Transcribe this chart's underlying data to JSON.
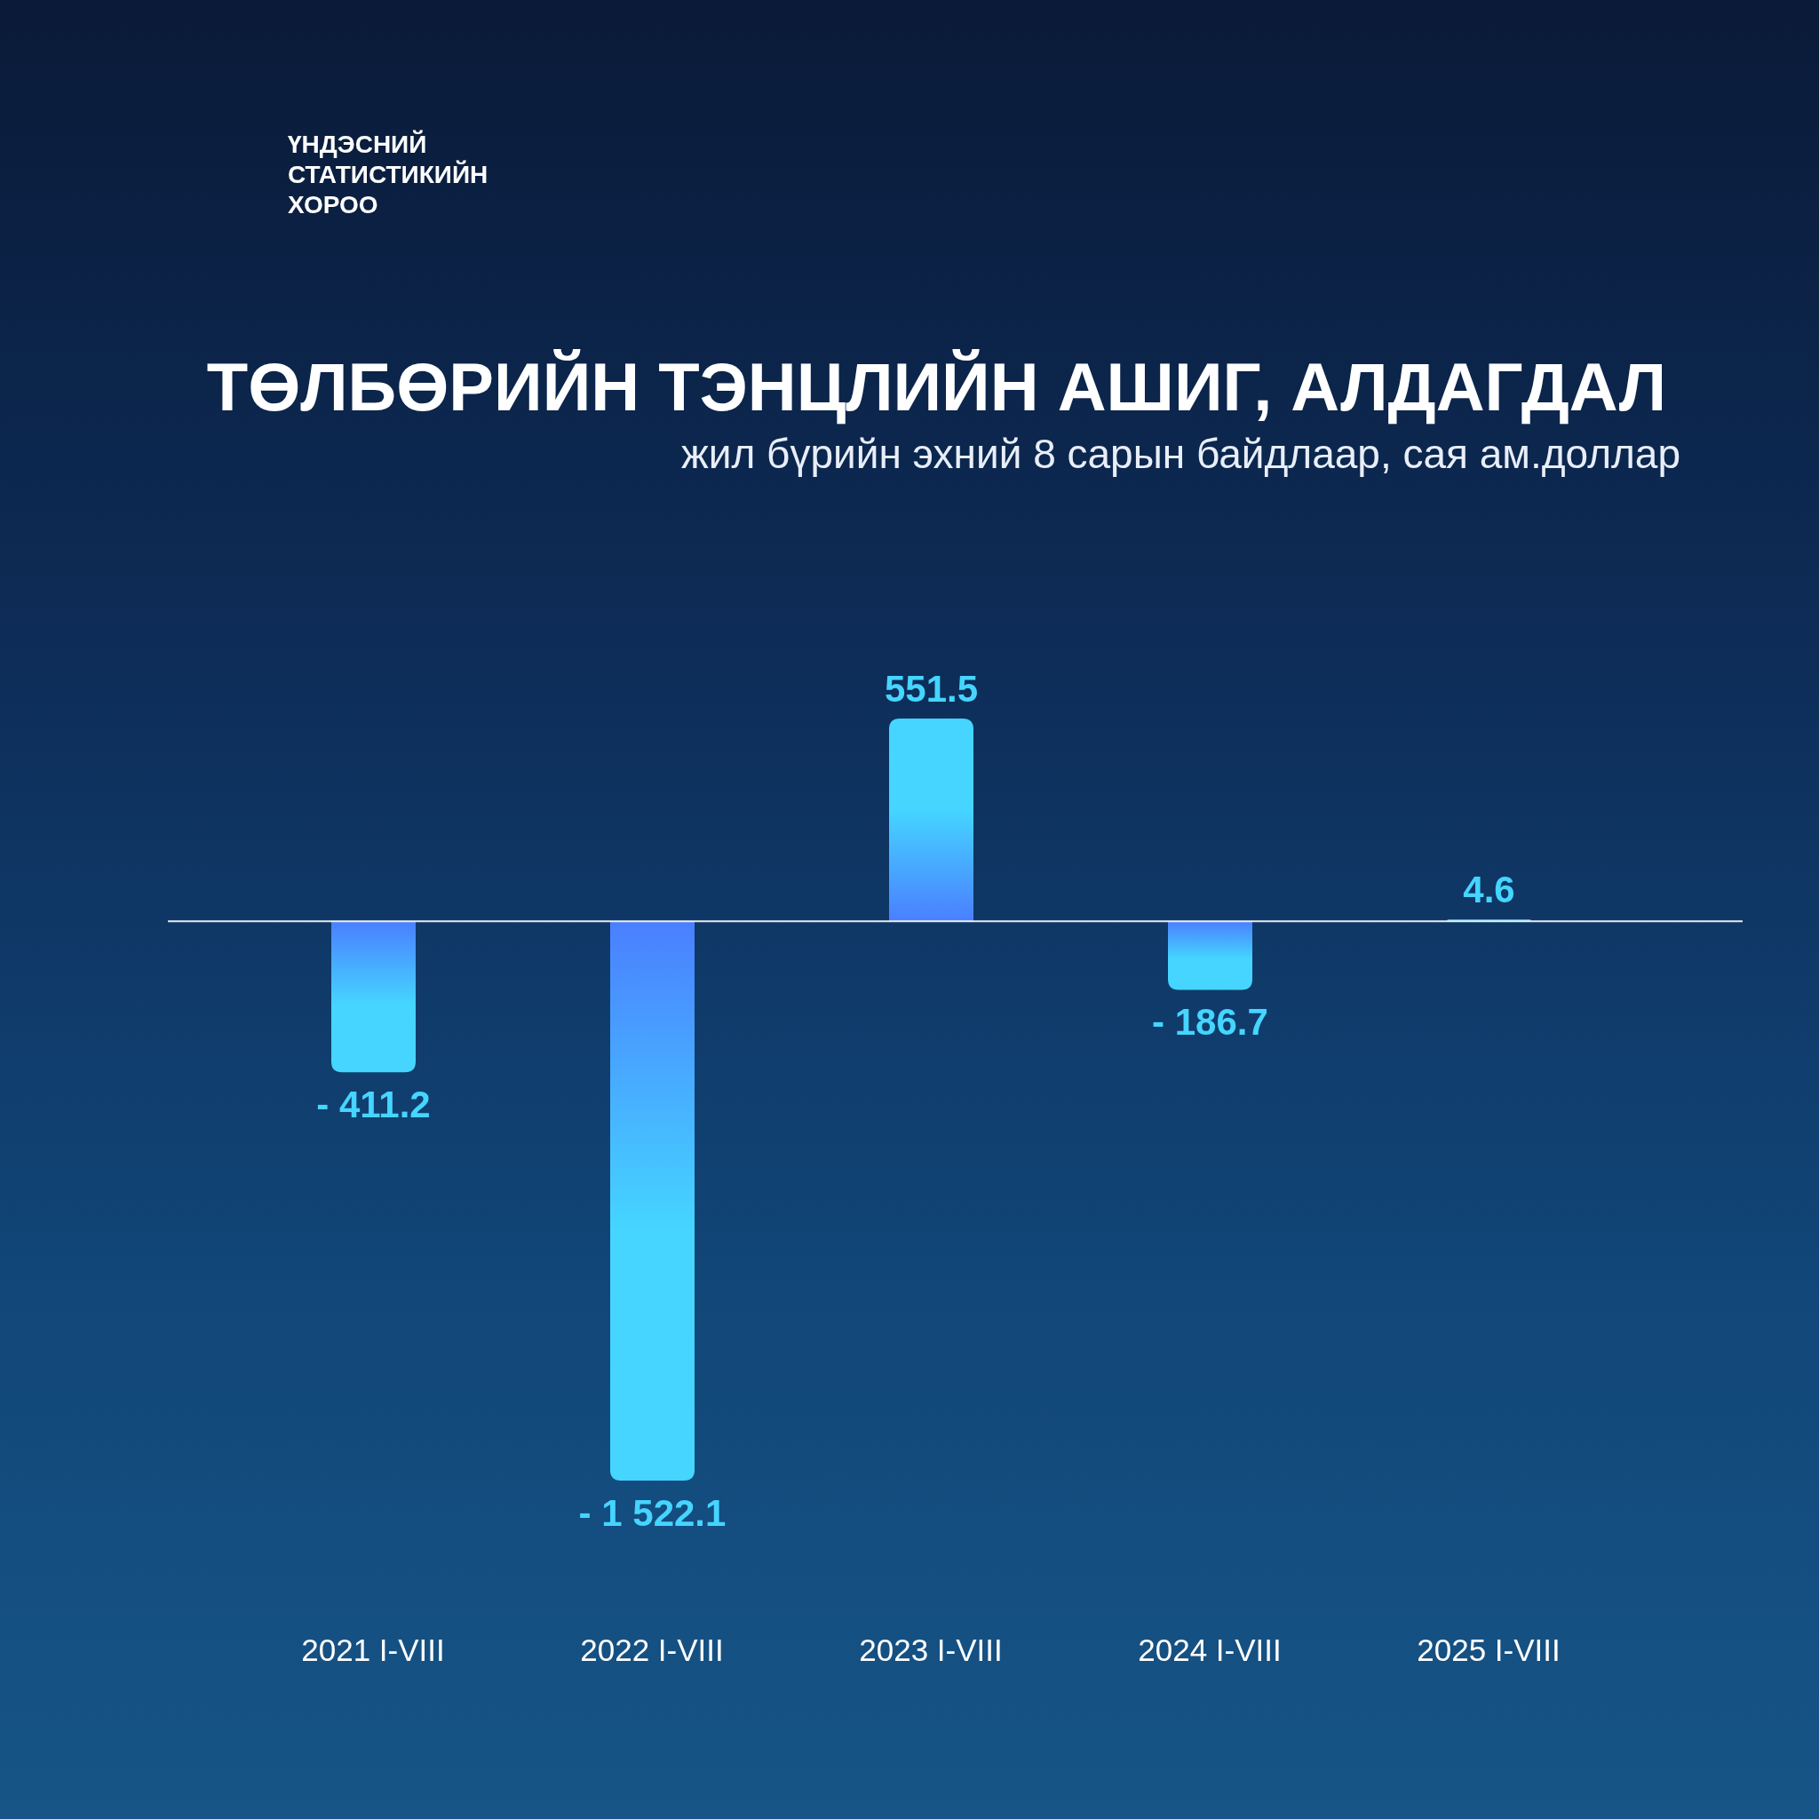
{
  "chart_data": {
    "type": "bar",
    "title": "ТӨЛБӨРИЙН ТЭНЦЛИЙН АШИГ, АЛДАГДАЛ",
    "subtitle": "жил бүрийн эхний 8 сарын байдлаар, сая ам.доллар",
    "annotations": [
      "ҮНДЭСНИЙ СТАТИСТИКИЙН ХОРОО"
    ],
    "categories": [
      "2021 I-VIII",
      "2022 I-VIII",
      "2023 I-VIII",
      "2024 I-VIII",
      "2025 I-VIII"
    ],
    "values": [
      -411.2,
      -1522.1,
      551.5,
      -186.7,
      4.6
    ],
    "value_labels": [
      "- 411.2",
      "- 1 522.1",
      "551.5",
      "- 186.7",
      "4.6"
    ],
    "color": "#45d5ff",
    "tick_labels": "x"
  }
}
